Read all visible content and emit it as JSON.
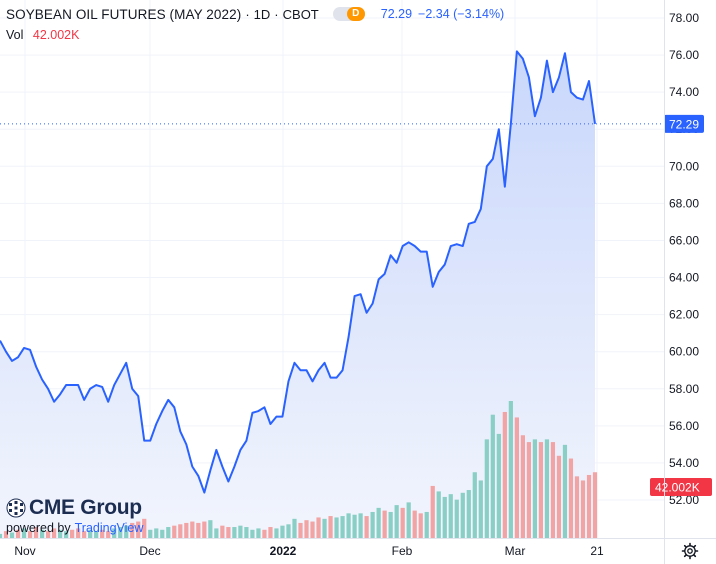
{
  "header": {
    "title": "SOYBEAN OIL FUTURES (MAY 2022)",
    "interval": "1D",
    "exchange": "CBOT",
    "badge_letter": "D",
    "last_price": "72.29",
    "change": "−2.34 (−3.14%)",
    "vol_label": "Vol",
    "vol_value": "42.002K"
  },
  "branding": {
    "logo_text": "CME Group",
    "powered_by": "powered by",
    "tradingview": "TradingView"
  },
  "colors": {
    "line": "#2962ff",
    "area_top": "#c9d7fb",
    "area_bottom": "#f2f5fd",
    "vol_up": "#89cfc6",
    "vol_down": "#f2a3a3",
    "grid": "#f0f3fa",
    "axis_text": "#131722",
    "price_label_bg": "#2962ff",
    "vol_label_bg": "#f23645"
  },
  "chart_data": {
    "type": "area",
    "title": "SOYBEAN OIL FUTURES (MAY 2022)",
    "y_axis": {
      "ticks": [
        52,
        54,
        56,
        58,
        60,
        62,
        64,
        66,
        68,
        70,
        72,
        74,
        76,
        78
      ],
      "ylim": [
        50.7,
        78.9
      ]
    },
    "x_axis": {
      "ticks": [
        "Nov",
        "Dec",
        "2022",
        "Feb",
        "Mar",
        "21"
      ]
    },
    "grid": true,
    "last_price_label": "72.29",
    "last_volume_label": "42.002K",
    "price_series": [
      60.6,
      60.0,
      59.5,
      59.7,
      60.2,
      60.1,
      59.2,
      58.5,
      58.0,
      57.3,
      57.7,
      58.2,
      58.2,
      58.2,
      57.4,
      58.0,
      58.2,
      58.1,
      57.3,
      58.2,
      58.8,
      59.4,
      58.0,
      57.6,
      55.2,
      55.2,
      56.1,
      56.8,
      57.4,
      57.0,
      55.7,
      55.0,
      53.8,
      53.3,
      52.4,
      53.6,
      54.7,
      53.8,
      53.0,
      53.8,
      54.7,
      55.2,
      56.7,
      56.8,
      57.0,
      56.1,
      56.5,
      56.5,
      58.4,
      59.4,
      59.0,
      59.0,
      58.4,
      59.0,
      59.4,
      58.6,
      58.6,
      59.0,
      60.8,
      63.0,
      63.1,
      62.1,
      62.6,
      63.9,
      64.2,
      65.2,
      64.8,
      65.7,
      65.9,
      65.7,
      65.4,
      65.4,
      63.5,
      64.3,
      64.7,
      65.7,
      65.8,
      65.7,
      66.9,
      67.0,
      67.7,
      70.0,
      70.4,
      72.0,
      68.9,
      72.3,
      76.2,
      75.8,
      74.8,
      72.7,
      73.7,
      75.7,
      74.0,
      74.8,
      76.1,
      74.0,
      73.7,
      73.6,
      74.6,
      72.29
    ],
    "volume_series": [
      {
        "v": 3,
        "d": 0
      },
      {
        "v": 5,
        "d": 1
      },
      {
        "v": 4,
        "d": 0
      },
      {
        "v": 6,
        "d": 1
      },
      {
        "v": 7,
        "d": 0
      },
      {
        "v": 5,
        "d": 1
      },
      {
        "v": 8,
        "d": 1
      },
      {
        "v": 6,
        "d": 0
      },
      {
        "v": 5,
        "d": 1
      },
      {
        "v": 7,
        "d": 1
      },
      {
        "v": 6,
        "d": 0
      },
      {
        "v": 5,
        "d": 0
      },
      {
        "v": 6,
        "d": 1
      },
      {
        "v": 7,
        "d": 1
      },
      {
        "v": 5,
        "d": 1
      },
      {
        "v": 6,
        "d": 0
      },
      {
        "v": 5,
        "d": 0
      },
      {
        "v": 6,
        "d": 1
      },
      {
        "v": 5,
        "d": 1
      },
      {
        "v": 7,
        "d": 0
      },
      {
        "v": 8,
        "d": 0
      },
      {
        "v": 9,
        "d": 0
      },
      {
        "v": 11,
        "d": 1
      },
      {
        "v": 12,
        "d": 1
      },
      {
        "v": 14,
        "d": 1
      },
      {
        "v": 6,
        "d": 0
      },
      {
        "v": 7,
        "d": 0
      },
      {
        "v": 6,
        "d": 0
      },
      {
        "v": 8,
        "d": 0
      },
      {
        "v": 9,
        "d": 1
      },
      {
        "v": 10,
        "d": 1
      },
      {
        "v": 11,
        "d": 1
      },
      {
        "v": 12,
        "d": 1
      },
      {
        "v": 11,
        "d": 1
      },
      {
        "v": 12,
        "d": 1
      },
      {
        "v": 13,
        "d": 0
      },
      {
        "v": 7,
        "d": 0
      },
      {
        "v": 9,
        "d": 1
      },
      {
        "v": 8,
        "d": 1
      },
      {
        "v": 8,
        "d": 0
      },
      {
        "v": 9,
        "d": 0
      },
      {
        "v": 8,
        "d": 0
      },
      {
        "v": 6,
        "d": 0
      },
      {
        "v": 7,
        "d": 0
      },
      {
        "v": 6,
        "d": 1
      },
      {
        "v": 8,
        "d": 1
      },
      {
        "v": 7,
        "d": 0
      },
      {
        "v": 9,
        "d": 0
      },
      {
        "v": 10,
        "d": 0
      },
      {
        "v": 14,
        "d": 0
      },
      {
        "v": 11,
        "d": 1
      },
      {
        "v": 13,
        "d": 1
      },
      {
        "v": 12,
        "d": 1
      },
      {
        "v": 15,
        "d": 1
      },
      {
        "v": 14,
        "d": 0
      },
      {
        "v": 16,
        "d": 1
      },
      {
        "v": 15,
        "d": 0
      },
      {
        "v": 16,
        "d": 0
      },
      {
        "v": 18,
        "d": 0
      },
      {
        "v": 17,
        "d": 0
      },
      {
        "v": 18,
        "d": 0
      },
      {
        "v": 16,
        "d": 1
      },
      {
        "v": 19,
        "d": 0
      },
      {
        "v": 22,
        "d": 0
      },
      {
        "v": 20,
        "d": 1
      },
      {
        "v": 19,
        "d": 0
      },
      {
        "v": 24,
        "d": 0
      },
      {
        "v": 22,
        "d": 1
      },
      {
        "v": 26,
        "d": 0
      },
      {
        "v": 20,
        "d": 1
      },
      {
        "v": 18,
        "d": 1
      },
      {
        "v": 19,
        "d": 0
      },
      {
        "v": 38,
        "d": 1
      },
      {
        "v": 34,
        "d": 0
      },
      {
        "v": 30,
        "d": 0
      },
      {
        "v": 32,
        "d": 0
      },
      {
        "v": 28,
        "d": 0
      },
      {
        "v": 33,
        "d": 0
      },
      {
        "v": 35,
        "d": 0
      },
      {
        "v": 48,
        "d": 0
      },
      {
        "v": 42,
        "d": 0
      },
      {
        "v": 72,
        "d": 0
      },
      {
        "v": 90,
        "d": 0
      },
      {
        "v": 76,
        "d": 0
      },
      {
        "v": 92,
        "d": 1
      },
      {
        "v": 100,
        "d": 0
      },
      {
        "v": 88,
        "d": 1
      },
      {
        "v": 75,
        "d": 1
      },
      {
        "v": 70,
        "d": 1
      },
      {
        "v": 72,
        "d": 0
      },
      {
        "v": 70,
        "d": 1
      },
      {
        "v": 72,
        "d": 0
      },
      {
        "v": 70,
        "d": 1
      },
      {
        "v": 60,
        "d": 1
      },
      {
        "v": 68,
        "d": 0
      },
      {
        "v": 58,
        "d": 1
      },
      {
        "v": 45,
        "d": 1
      },
      {
        "v": 42,
        "d": 1
      },
      {
        "v": 46,
        "d": 1
      },
      {
        "v": 48,
        "d": 1
      }
    ]
  }
}
